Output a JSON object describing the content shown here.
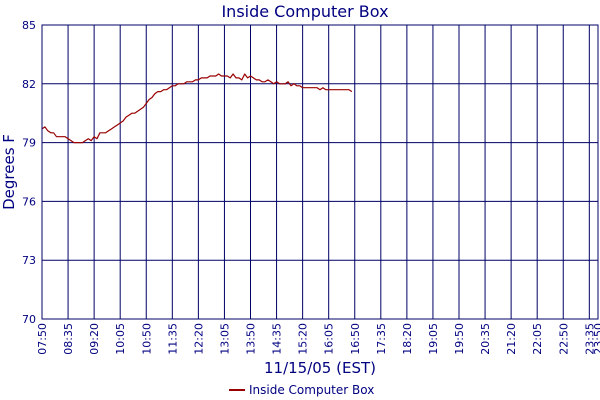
{
  "chart_data": {
    "type": "line",
    "title": "Inside Computer Box",
    "xlabel": "11/15/05 (EST)",
    "ylabel": "Degrees F",
    "ylim": [
      70,
      85
    ],
    "yticks": [
      70,
      73,
      76,
      79,
      82,
      85
    ],
    "x_start": "07:50",
    "x_step_minutes": 5,
    "xticks": [
      "07:50",
      "08:35",
      "09:20",
      "10:05",
      "10:50",
      "11:35",
      "12:20",
      "13:05",
      "13:50",
      "14:35",
      "15:20",
      "16:05",
      "16:50",
      "17:35",
      "18:20",
      "19:05",
      "19:50",
      "20:35",
      "21:20",
      "22:05",
      "22:50",
      "23:35",
      "23:50"
    ],
    "grid": true,
    "legend_position": "bottom-center",
    "colors": {
      "series": "#990000",
      "grid": "#000066",
      "axis_text": "#000080",
      "title": "#000080"
    },
    "series": [
      {
        "name": "Inside Computer Box",
        "values": [
          79.7,
          79.8,
          79.6,
          79.5,
          79.5,
          79.3,
          79.3,
          79.3,
          79.3,
          79.2,
          79.1,
          79.0,
          79.0,
          79.0,
          79.0,
          79.1,
          79.2,
          79.1,
          79.3,
          79.2,
          79.5,
          79.5,
          79.5,
          79.6,
          79.7,
          79.8,
          79.9,
          80.0,
          80.1,
          80.3,
          80.4,
          80.5,
          80.5,
          80.6,
          80.7,
          80.8,
          81.0,
          81.2,
          81.3,
          81.5,
          81.6,
          81.6,
          81.7,
          81.7,
          81.8,
          81.9,
          81.9,
          82.0,
          82.0,
          82.0,
          82.1,
          82.1,
          82.1,
          82.2,
          82.2,
          82.3,
          82.3,
          82.3,
          82.4,
          82.4,
          82.4,
          82.5,
          82.4,
          82.4,
          82.4,
          82.3,
          82.5,
          82.3,
          82.3,
          82.2,
          82.5,
          82.3,
          82.4,
          82.3,
          82.2,
          82.2,
          82.1,
          82.1,
          82.2,
          82.1,
          82.0,
          82.1,
          82.0,
          82.0,
          82.0,
          82.1,
          81.9,
          82.0,
          81.9,
          81.9,
          81.8,
          81.8,
          81.8,
          81.8,
          81.8,
          81.8,
          81.7,
          81.8,
          81.7,
          81.7,
          81.7,
          81.7,
          81.7,
          81.7,
          81.7,
          81.7,
          81.7,
          81.6
        ]
      }
    ]
  }
}
